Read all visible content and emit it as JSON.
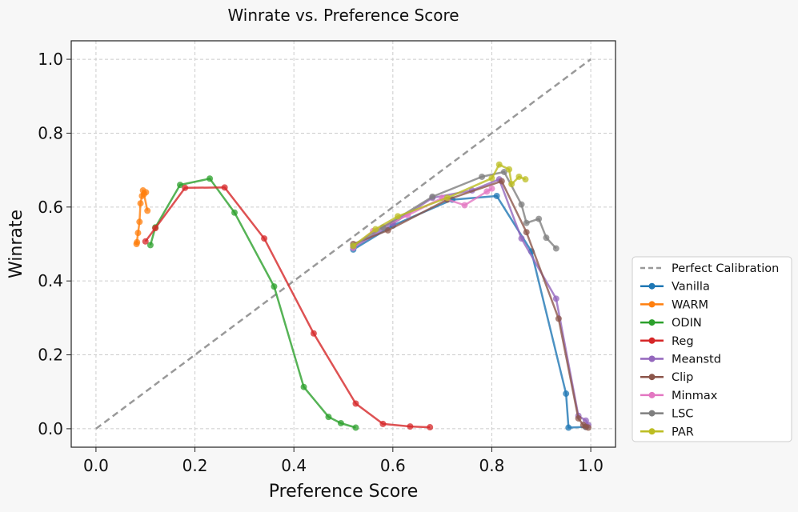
{
  "chart_data": {
    "type": "line",
    "title": "Winrate vs. Preference Score",
    "xlabel": "Preference Score",
    "ylabel": "Winrate",
    "xlim": [
      -0.05,
      1.05
    ],
    "ylim": [
      -0.05,
      1.05
    ],
    "xticks": [
      0.0,
      0.2,
      0.4,
      0.6,
      0.8,
      1.0
    ],
    "yticks": [
      0.0,
      0.2,
      0.4,
      0.6,
      0.8,
      1.0
    ],
    "xtick_labels": [
      "0.0",
      "0.2",
      "0.4",
      "0.6",
      "0.8",
      "1.0"
    ],
    "ytick_labels": [
      "0.0",
      "0.2",
      "0.4",
      "0.6",
      "0.8",
      "1.0"
    ],
    "grid": true,
    "legend_position": "outside-lower-right",
    "reference_line": {
      "name": "Perfect Calibration",
      "color": "#999999",
      "style": "dashed",
      "x": [
        0.0,
        1.0
      ],
      "y": [
        0.0,
        1.0
      ]
    },
    "series": [
      {
        "name": "Vanilla",
        "color": "#1f77b4",
        "x": [
          0.52,
          0.6,
          0.72,
          0.81,
          0.88,
          0.95,
          0.955,
          0.99
        ],
        "y": [
          0.485,
          0.55,
          0.62,
          0.63,
          0.48,
          0.095,
          0.003,
          0.005
        ]
      },
      {
        "name": "WARM",
        "color": "#ff7f0e",
        "x": [
          0.104,
          0.097,
          0.101,
          0.095,
          0.093,
          0.09,
          0.088,
          0.085,
          0.082,
          0.083
        ],
        "y": [
          0.59,
          0.635,
          0.64,
          0.645,
          0.63,
          0.61,
          0.56,
          0.53,
          0.5,
          0.505
        ]
      },
      {
        "name": "ODIN",
        "color": "#2ca02c",
        "x": [
          0.11,
          0.12,
          0.17,
          0.23,
          0.28,
          0.36,
          0.42,
          0.47,
          0.495,
          0.525
        ],
        "y": [
          0.497,
          0.545,
          0.66,
          0.677,
          0.585,
          0.385,
          0.113,
          0.032,
          0.015,
          0.003
        ]
      },
      {
        "name": "Reg",
        "color": "#d62728",
        "x": [
          0.1,
          0.12,
          0.18,
          0.26,
          0.34,
          0.44,
          0.525,
          0.58,
          0.635,
          0.675
        ],
        "y": [
          0.507,
          0.543,
          0.652,
          0.653,
          0.515,
          0.258,
          0.068,
          0.013,
          0.006,
          0.004
        ]
      },
      {
        "name": "Meanstd",
        "color": "#9467bd",
        "x": [
          0.52,
          0.6,
          0.68,
          0.76,
          0.815,
          0.86,
          0.93,
          0.975,
          0.99,
          0.995
        ],
        "y": [
          0.49,
          0.555,
          0.625,
          0.645,
          0.675,
          0.515,
          0.352,
          0.035,
          0.022,
          0.01
        ]
      },
      {
        "name": "Clip",
        "color": "#8c564b",
        "x": [
          0.52,
          0.59,
          0.71,
          0.82,
          0.87,
          0.935,
          0.975,
          0.985,
          0.99,
          0.995
        ],
        "y": [
          0.5,
          0.537,
          0.62,
          0.67,
          0.532,
          0.298,
          0.028,
          0.01,
          0.005,
          0.003
        ]
      },
      {
        "name": "Minmax",
        "color": "#e377c2",
        "x": [
          0.52,
          0.56,
          0.63,
          0.7,
          0.745,
          0.79,
          0.8
        ],
        "y": [
          0.49,
          0.535,
          0.578,
          0.625,
          0.605,
          0.642,
          0.65
        ]
      },
      {
        "name": "LSC",
        "color": "#7f7f7f",
        "x": [
          0.52,
          0.58,
          0.68,
          0.78,
          0.825,
          0.86,
          0.87,
          0.895,
          0.91,
          0.93
        ],
        "y": [
          0.495,
          0.545,
          0.628,
          0.682,
          0.695,
          0.607,
          0.557,
          0.568,
          0.517,
          0.488
        ]
      },
      {
        "name": "PAR",
        "color": "#bcbd22",
        "x": [
          0.52,
          0.565,
          0.61,
          0.71,
          0.8,
          0.815,
          0.835,
          0.84,
          0.855,
          0.868
        ],
        "y": [
          0.495,
          0.54,
          0.575,
          0.625,
          0.678,
          0.715,
          0.702,
          0.662,
          0.682,
          0.675
        ]
      }
    ]
  }
}
